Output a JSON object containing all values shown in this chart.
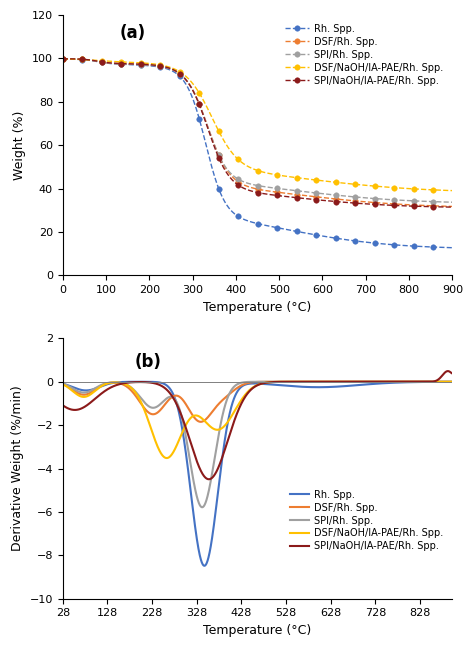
{
  "title_a": "(a)",
  "title_b": "(b)",
  "xlabel": "Temperature (°C)",
  "ylabel_a": "Weight (%)",
  "ylabel_b": "Derivative Weight (%/min)",
  "xlim_a": [
    0,
    900
  ],
  "ylim_a": [
    0,
    120
  ],
  "xlim_b": [
    28,
    900
  ],
  "ylim_b": [
    -10,
    2
  ],
  "xticks_a": [
    0,
    100,
    200,
    300,
    400,
    500,
    600,
    700,
    800,
    900
  ],
  "yticks_a": [
    0,
    20,
    40,
    60,
    80,
    100,
    120
  ],
  "xticks_b": [
    28,
    128,
    228,
    328,
    428,
    528,
    628,
    728,
    828
  ],
  "yticks_b": [
    -10,
    -8,
    -6,
    -4,
    -2,
    0,
    2
  ],
  "legend_a": [
    "Rh. Spp.",
    "DSF/Rh. Spp.",
    "SPI/Rh. Spp.",
    "DSF/NaOH/IA-PAE/Rh. Spp.",
    "SPI/NaOH/IA-PAE/Rh. Spp."
  ],
  "legend_b": [
    "Rh. Spp.",
    "DSF/Rh. Spp.",
    "SPI/Rh. Spp.",
    "DSF/NaOH/IA-PAE/Rh. Spp.",
    "SPI/NaOH/IA-PAE/Rh. Spp."
  ],
  "colors_a": [
    "#4472C4",
    "#ED7D31",
    "#A0A0A0",
    "#FFC000",
    "#8B1A1A"
  ],
  "colors_b": [
    "#4472C4",
    "#ED7D31",
    "#A0A0A0",
    "#FFC000",
    "#8B1A1A"
  ],
  "marker_size_a": 4,
  "line_style_a": "--",
  "figsize": [
    4.74,
    6.48
  ],
  "dpi": 100
}
